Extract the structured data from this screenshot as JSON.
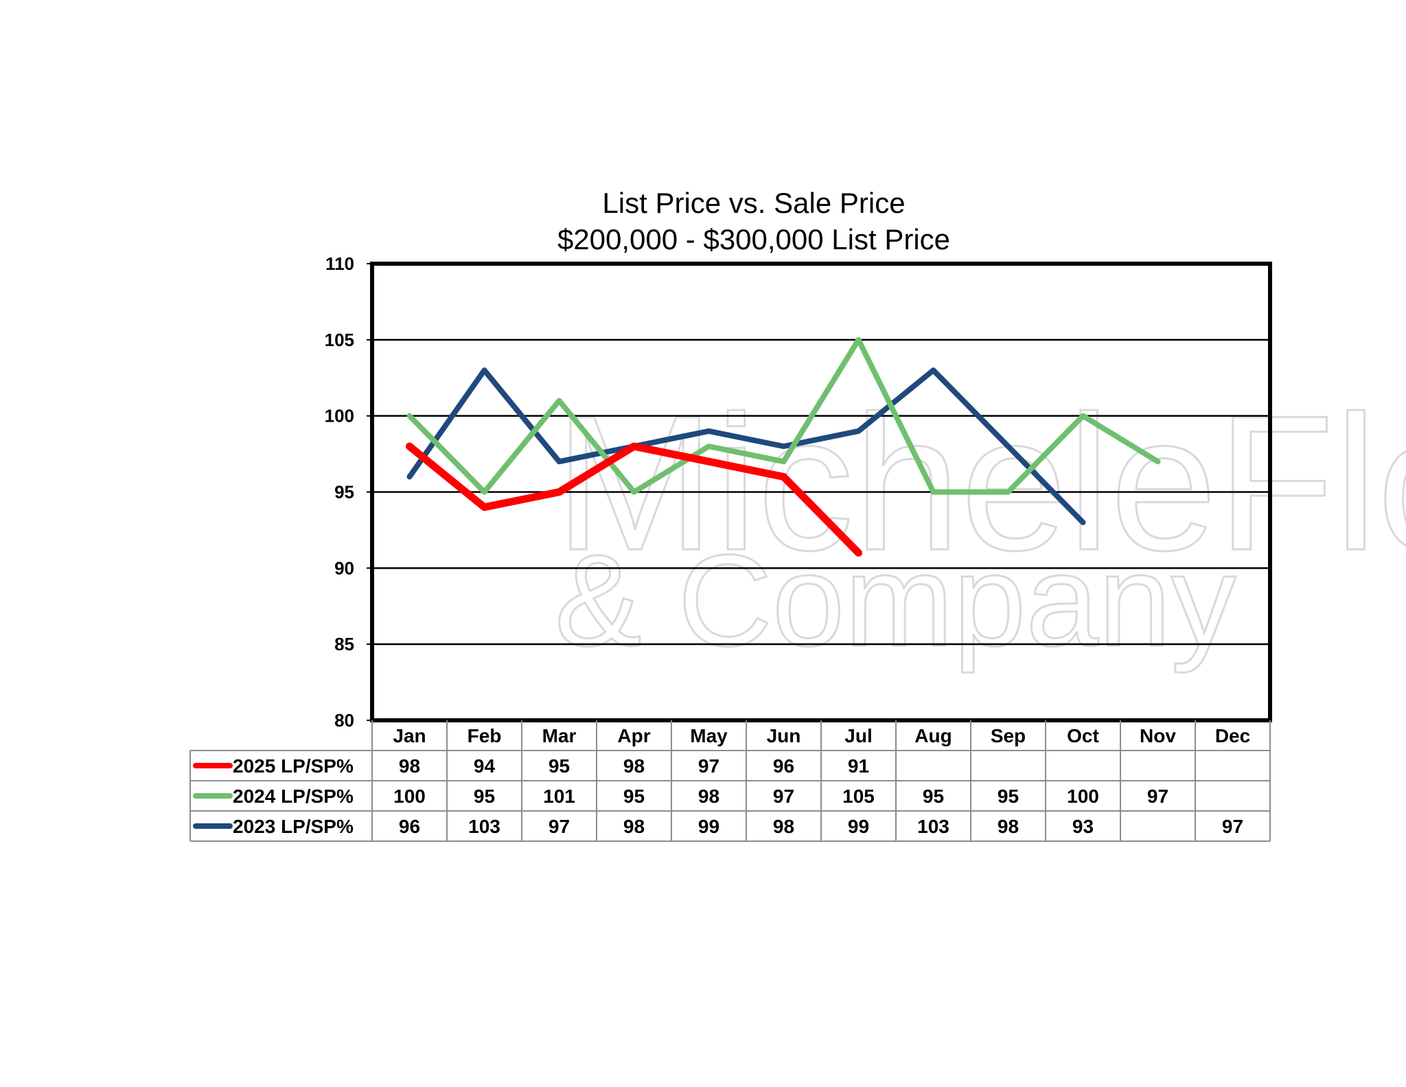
{
  "chart_data": {
    "type": "line",
    "title": "List Price vs. Sale Price",
    "subtitle": "$200,000 - $300,000 List Price",
    "xlabel": "",
    "ylabel": "",
    "ylim": [
      80,
      110
    ],
    "yticks": [
      "80",
      "85",
      "90",
      "95",
      "100",
      "105",
      "110"
    ],
    "grid": true,
    "legend": "data-table-below",
    "categories": [
      "Jan",
      "Feb",
      "Mar",
      "Apr",
      "May",
      "Jun",
      "Jul",
      "Aug",
      "Sep",
      "Oct",
      "Nov",
      "Dec"
    ],
    "series": [
      {
        "name": "2025 LP/SP%",
        "color": "#ff0000",
        "values": [
          98,
          94,
          95,
          98,
          97,
          96,
          91,
          null,
          null,
          null,
          null,
          null
        ]
      },
      {
        "name": "2024 LP/SP%",
        "color": "#70bf70",
        "values": [
          100,
          95,
          101,
          95,
          98,
          97,
          105,
          95,
          95,
          100,
          97,
          null
        ]
      },
      {
        "name": "2023 LP/SP%",
        "color": "#1f497d",
        "values": [
          96,
          103,
          97,
          98,
          99,
          98,
          99,
          103,
          98,
          93,
          null,
          97
        ]
      }
    ]
  },
  "watermark": {
    "line1": "MicheleFlory",
    "line2": "& Company"
  }
}
